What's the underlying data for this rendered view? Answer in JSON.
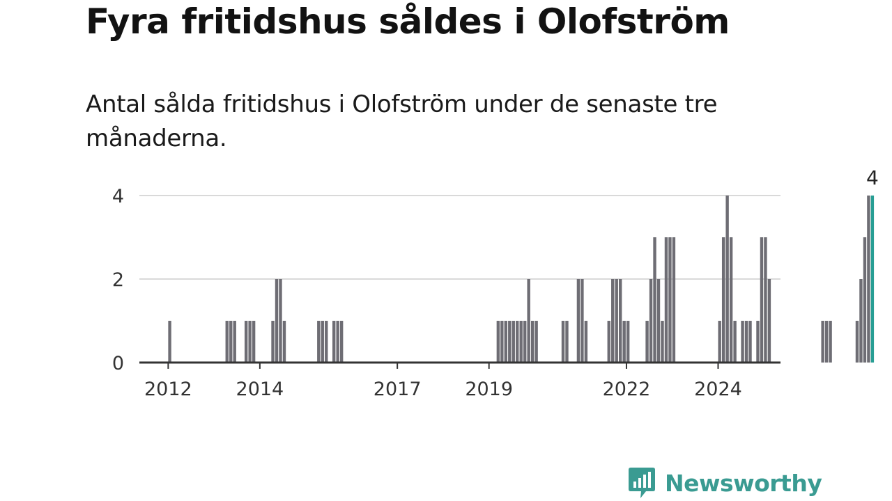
{
  "title": "Fyra fritidshus såldes i Olofström",
  "subtitle": "Antal sålda fritidshus i Olofström under de senaste tre månaderna.",
  "brand": "Newsworthy",
  "colors": {
    "bar": "#6e6d74",
    "highlight": "#279e94",
    "brand": "#3a9b92",
    "grid": "#d9d9d9",
    "axis": "#333333"
  },
  "chart_data": {
    "type": "bar",
    "x_unit": "month",
    "x_start": "2011-06",
    "ylim": [
      0,
      4
    ],
    "yticks": [
      0,
      2,
      4
    ],
    "xticks": [
      "2012",
      "2014",
      "2017",
      "2019",
      "2022",
      "2024"
    ],
    "grid": true,
    "values": [
      0,
      0,
      0,
      0,
      0,
      0,
      0,
      1,
      0,
      0,
      0,
      0,
      0,
      0,
      0,
      0,
      0,
      0,
      0,
      0,
      0,
      0,
      1,
      1,
      1,
      0,
      0,
      1,
      1,
      1,
      0,
      0,
      0,
      0,
      1,
      2,
      2,
      1,
      0,
      0,
      0,
      0,
      0,
      0,
      0,
      0,
      1,
      1,
      1,
      0,
      1,
      1,
      1,
      0,
      0,
      0,
      0,
      0,
      0,
      0,
      0,
      0,
      0,
      0,
      0,
      0,
      0,
      0,
      0,
      0,
      0,
      0,
      0,
      0,
      0,
      0,
      0,
      0,
      0,
      0,
      0,
      0,
      0,
      0,
      0,
      0,
      0,
      0,
      0,
      0,
      0,
      0,
      0,
      1,
      1,
      1,
      1,
      1,
      1,
      1,
      1,
      2,
      1,
      1,
      0,
      0,
      0,
      0,
      0,
      0,
      1,
      1,
      0,
      0,
      2,
      2,
      1,
      0,
      0,
      0,
      0,
      0,
      1,
      2,
      2,
      2,
      1,
      1,
      0,
      0,
      0,
      0,
      1,
      2,
      3,
      2,
      1,
      3,
      3,
      3,
      0,
      0,
      0,
      0,
      0,
      0,
      0,
      0,
      0,
      0,
      0,
      1,
      3,
      4,
      3,
      1,
      0,
      1,
      1,
      1,
      0,
      1,
      3,
      3,
      2,
      0,
      0,
      0,
      0,
      0,
      0,
      0,
      0,
      0,
      0,
      0,
      0,
      0,
      1,
      1,
      1,
      0,
      0,
      0,
      0,
      0,
      0,
      1,
      2,
      3,
      4,
      4
    ],
    "last_value_label": "4"
  }
}
